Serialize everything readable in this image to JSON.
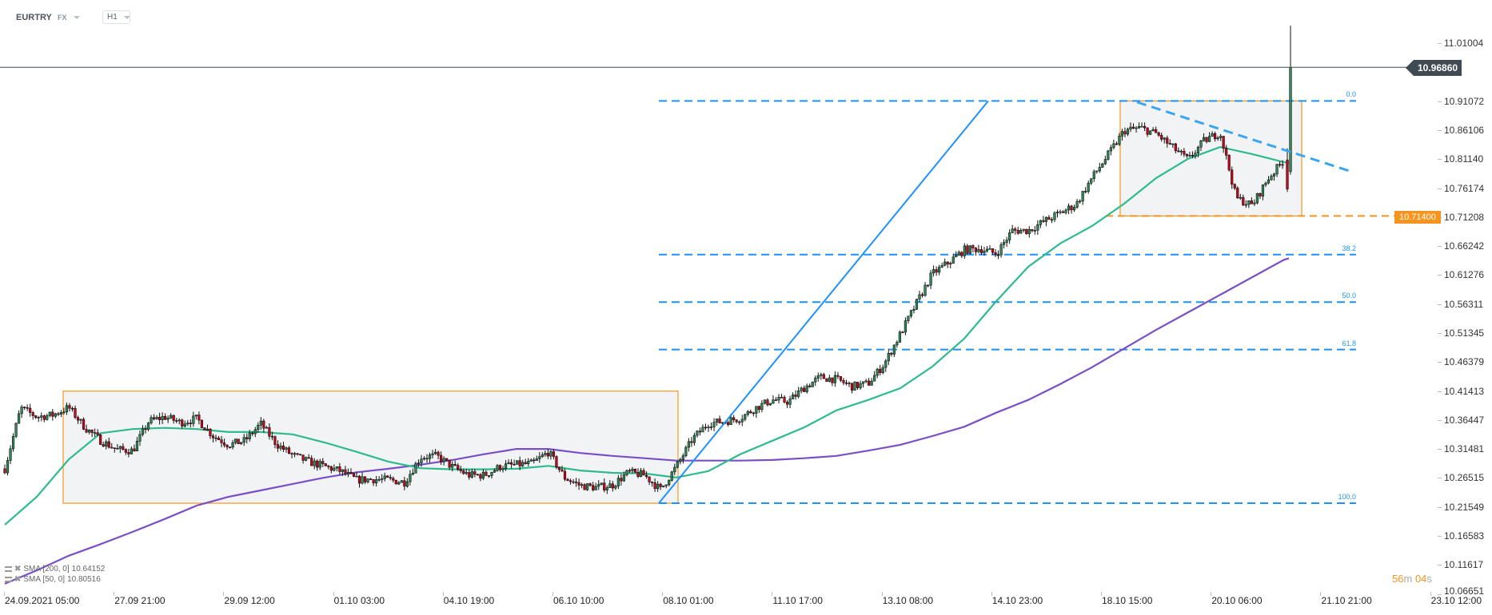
{
  "header": {
    "symbol": "EURTRY",
    "market": "FX",
    "timeframe": "H1"
  },
  "legend": [
    {
      "label": "SMA [200,  0]",
      "value": "10.64152"
    },
    {
      "label": "SMA [50,  0]",
      "value": "10.80516"
    }
  ],
  "countdown": {
    "minutes": "56",
    "m_unit": "m",
    "seconds": "04",
    "s_unit": "s"
  },
  "price_tags": {
    "last": "10.96860",
    "level": "10.71400"
  },
  "colors": {
    "bull": "#2e8b57",
    "bear": "#d0021b",
    "sma200": "#7a4fc6",
    "sma50": "#2dbb8b",
    "fib": "#1e90ff",
    "trend": "#3aa6ef",
    "box": "#f7941d",
    "box_fill": "#f2f3f5",
    "last_price": "#404a52"
  },
  "chart_data": {
    "type": "candlestick",
    "symbol": "EURTRY",
    "timeframe": "H1",
    "ylim": [
      10.04,
      11.04
    ],
    "x_tick_labels": [
      "24.09.2021  05:00",
      "27.09  21:00",
      "29.09  12:00",
      "01.10  03:00",
      "04.10  19:00",
      "06.10  10:00",
      "08.10  01:00",
      "11.10  17:00",
      "13.10  08:00",
      "14.10  23:00",
      "18.10  15:00",
      "20.10  06:00",
      "21.10  21:00",
      "23.10  12:00"
    ],
    "y_tick_labels": [
      "11.01004",
      "10.91072",
      "10.86106",
      "10.81140",
      "10.76174",
      "10.71208",
      "10.66242",
      "10.61276",
      "10.56311",
      "10.51345",
      "10.46379",
      "10.41413",
      "10.36447",
      "10.31481",
      "10.26515",
      "10.21549",
      "10.16583",
      "10.11617",
      "10.06651"
    ],
    "close_series": [
      10.281,
      10.385,
      10.37,
      10.373,
      10.386,
      10.352,
      10.329,
      10.314,
      10.312,
      10.362,
      10.37,
      10.36,
      10.367,
      10.338,
      10.322,
      10.329,
      10.358,
      10.323,
      10.304,
      10.293,
      10.285,
      10.277,
      10.262,
      10.263,
      10.262,
      10.258,
      10.301,
      10.303,
      10.284,
      10.27,
      10.27,
      10.285,
      10.288,
      10.29,
      10.31,
      10.266,
      10.252,
      10.249,
      10.253,
      10.275,
      10.27,
      10.245,
      10.285,
      10.332,
      10.359,
      10.362,
      10.368,
      10.386,
      10.399,
      10.396,
      10.42,
      10.438,
      10.434,
      10.422,
      10.427,
      10.461,
      10.512,
      10.564,
      10.615,
      10.634,
      10.656,
      10.658,
      10.649,
      10.689,
      10.689,
      10.705,
      10.719,
      10.734,
      10.78,
      10.819,
      10.86,
      10.865,
      10.855,
      10.832,
      10.81,
      10.843,
      10.857,
      10.745,
      10.732,
      10.778,
      10.81
    ],
    "last_bars": [
      {
        "open": 10.81,
        "high": 10.83,
        "low": 10.755,
        "close": 10.76
      },
      {
        "open": 10.79,
        "high": 11.04,
        "low": 10.785,
        "close": 10.9686
      }
    ],
    "last_price": 10.9686,
    "series": [
      {
        "name": "SMA [200, 0]",
        "values": [
          10.084,
          10.107,
          10.132,
          10.152,
          10.173,
          10.195,
          10.218,
          10.233,
          10.244,
          10.255,
          10.266,
          10.275,
          10.281,
          10.288,
          10.296,
          10.306,
          10.315,
          10.315,
          10.308,
          10.303,
          10.299,
          10.295,
          10.295,
          10.295,
          10.296,
          10.299,
          10.303,
          10.312,
          10.322,
          10.337,
          10.353,
          10.377,
          10.399,
          10.426,
          10.455,
          10.487,
          10.519,
          10.549,
          10.579,
          10.609,
          10.639,
          10.64152
        ]
      },
      {
        "name": "SMA [50, 0]",
        "values": [
          10.185,
          10.233,
          10.297,
          10.342,
          10.349,
          10.351,
          10.349,
          10.344,
          10.344,
          10.34,
          10.326,
          10.31,
          10.293,
          10.282,
          10.28,
          10.28,
          10.281,
          10.286,
          10.278,
          10.274,
          10.273,
          10.266,
          10.277,
          10.306,
          10.329,
          10.352,
          10.381,
          10.399,
          10.419,
          10.456,
          10.504,
          10.568,
          10.627,
          10.667,
          10.697,
          10.735,
          10.779,
          10.812,
          10.832,
          10.82,
          10.806,
          10.80516
        ]
      }
    ],
    "fibonacci": {
      "high": 10.911,
      "low": 10.222,
      "levels": [
        {
          "label": "0.0",
          "ratio": 0.0
        },
        {
          "label": "38.2",
          "ratio": 0.382
        },
        {
          "label": "50.0",
          "ratio": 0.5
        },
        {
          "label": "61.8",
          "ratio": 0.618
        },
        {
          "label": "100.0",
          "ratio": 1.0
        }
      ]
    },
    "rectangles": [
      {
        "top": 10.414,
        "bottom": 10.222
      },
      {
        "top": 10.911,
        "bottom": 10.714
      }
    ],
    "horizontal_level": 10.714,
    "trendlines": [
      {
        "style": "solid",
        "from_price": 10.222,
        "to_price": 10.911
      },
      {
        "style": "dashed",
        "from_price": 10.909,
        "to_price": 10.79
      }
    ]
  }
}
